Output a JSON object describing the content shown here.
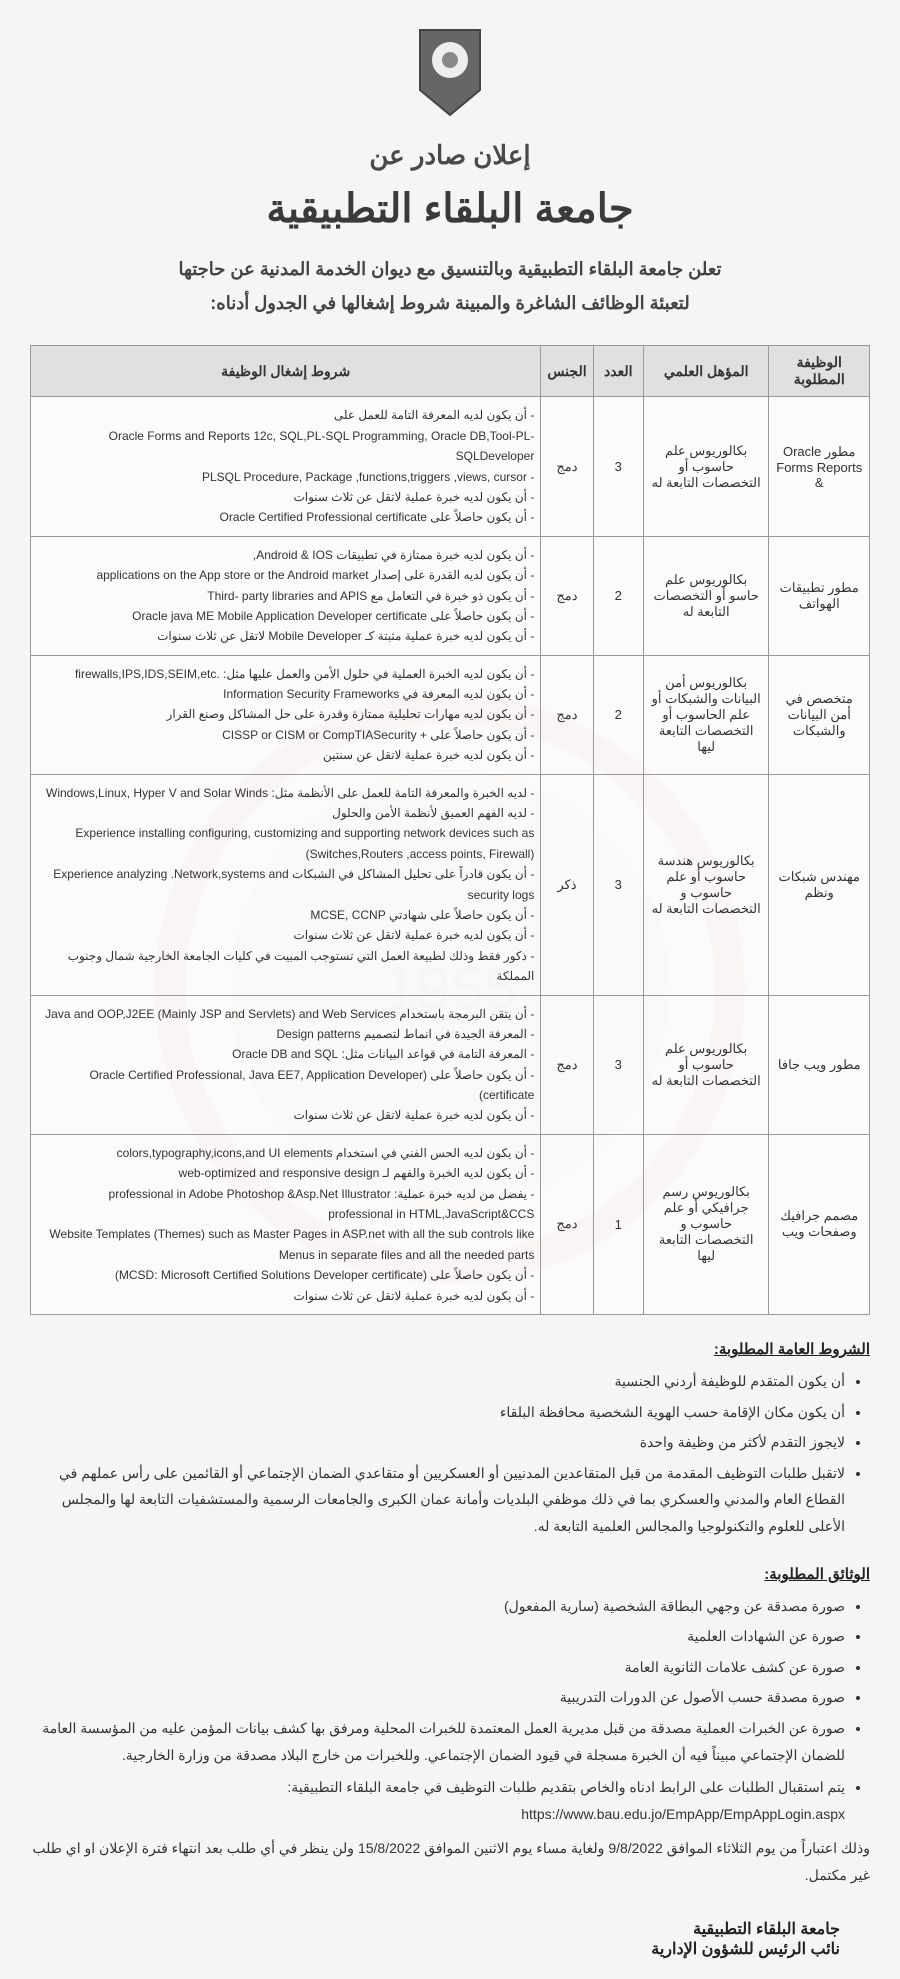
{
  "header": {
    "title1": "إعلان صادر عن",
    "title2": "جامعة البلقاء التطبيقية",
    "intro1": "تعلن جامعة البلقاء التطبيقية وبالتنسيق مع ديوان الخدمة المدنية عن حاجتها",
    "intro2": "لتعبئة الوظائف الشاغرة والمبينة شروط إشغالها في الجدول أدناه:"
  },
  "table": {
    "headers": {
      "job": "الوظيفة المطلوبة",
      "qual": "المؤهل العلمي",
      "count": "العدد",
      "gender": "الجنس",
      "req": "شروط إشغال الوظيفة"
    },
    "rows": [
      {
        "job": "مطور Oracle Forms Reports &",
        "qual": "بكالوريوس علم حاسوب أو التخصصات التابعة له",
        "count": "3",
        "gender": "دمج",
        "req": [
          "- أن يكون لديه المعرفة التامة للعمل على",
          "Oracle Forms and Reports 12c, SQL,PL-SQL Programming, Oracle DB,Tool-PL-SQLDeveloper",
          "- PLSQL Procedure, Package ,functions,triggers ,views, cursor",
          "- أن يكون لديه خبرة عملية لاتقل عن ثلاث سنوات",
          "- أن يكون حاصلاً على Oracle Certified Professional certificate"
        ]
      },
      {
        "job": "مطور تطبيقات الهواتف",
        "qual": "بكالوريوس علم حاسو أو التخصصات التابعة له",
        "count": "2",
        "gender": "دمج",
        "req": [
          "- أن يكون لديه خبرة ممتازة في تطبيقات Android & IOS,",
          "- أن يكون لديه القدرة على إصدار applications on the App store or the Android market",
          "- أن يكون ذو خبرة في التعامل مع Third- party libraries and APIS",
          "- أن يكون حاصلاً على Oracle java ME Mobile Application Developer certificate",
          "- أن يكون لديه خبرة عملية مثبتة كـ Mobile Developer لاتقل عن ثلاث سنوات"
        ]
      },
      {
        "job": "متخصص في أمن البيانات والشبكات",
        "qual": "بكالوريوس أمن البيانات والشبكات أو علم الحاسوب أو التخصصات التابعة ليها",
        "count": "2",
        "gender": "دمج",
        "req": [
          "- أن يكون لديه الخبرة العملية في حلول الأمن والعمل عليها مثل: .firewalls,IPS,IDS,SEIM,etc",
          "- أن يكون لديه المعرفة في Information Security Frameworks",
          "- أن يكون لديه مهارات تحليلية ممتازة وقدرة على حل المشاكل وصنع القرار",
          "- أن يكون حاصلاً على + CISSP or CISM or CompTIASecurity",
          "- أن يكون لديه خبرة عملية لاتقل عن سنتين"
        ]
      },
      {
        "job": "مهندس شبكات ونظم",
        "qual": "بكالوريوس هندسة حاسوب أو علم حاسوب و التخصصات التابعة له",
        "count": "3",
        "gender": "ذكر",
        "req": [
          "- لديه الخبرة والمعرفة التامة للعمل على الأنظمة مثل: Windows,Linux, Hyper V and Solar Winds",
          "- لديه الفهم العميق لأنظمة الأمن والحلول",
          "Experience installing configuring, customizing and supporting network devices such as (Switches,Routers ,access points, Firewall)",
          "- أن يكون قادراً على تحليل المشاكل في الشبكات Experience analyzing .Network,systems and security logs",
          "- أن يكون حاصلاً على شهادتي MCSE, CCNP",
          "- أن يكون لديه خبرة عملية لاتقل عن ثلاث سنوات",
          "- ذكور فقط وذلك لطبيعة العمل التي تستوجب المبيت في كليات الجامعة الخارجية شمال وجنوب المملكة"
        ]
      },
      {
        "job": "مطور ويب جافا",
        "qual": "بكالوريوس علم حاسوب أو التخصصات التابعة له",
        "count": "3",
        "gender": "دمج",
        "req": [
          "- أن يتقن البرمجة باستخدام Java and OOP,J2EE (Mainly JSP and Servlets) and Web Services",
          "- المعرفة الجيدة في انماط لتصميم Design patterns",
          "- المعرفة التامة في قواعد البيانات مثل: Oracle DB and SQL",
          "- أن يكون حاصلاً على (Oracle Certified Professional, Java EE7, Application Developer certificate)",
          "- أن يكون لديه خبرة عملية لاتقل عن ثلاث سنوات"
        ]
      },
      {
        "job": "مصمم جرافيك وصفحات ويب",
        "qual": "بكالوريوس رسم جرافيكي أو علم حاسوب و التخصصات التابعة ليها",
        "count": "1",
        "gender": "دمج",
        "req": [
          "- أن يكون لديه الحس الفني في استخدام colors,typography,icons,and UI elements",
          "- أن يكون لديه الخبرة والفهم لـ web-optimized and responsive design",
          "- يفضل من لديه خبرة عملية: professional in Adobe Photoshop &Asp.Net Illustrator",
          "professional in HTML,JavaScript&CCS",
          "Website Templates (Themes) such as Master Pages in ASP.net with all the sub controls like Menus in separate files and all the needed parts",
          "- أن يكون حاصلاً على (MCSD: Microsoft Certified Solutions Developer certificate)",
          "- أن يكون لديه خبرة عملية لاتقل عن ثلاث سنوات"
        ]
      }
    ]
  },
  "general": {
    "title": "الشروط العامة المطلوبة:",
    "items": [
      "أن يكون المتقدم للوظيفة أردني الجنسية",
      "أن يكون مكان الإقامة حسب الهوية الشخصية محافظة البلقاء",
      "لايجوز التقدم لأكثر من وظيفة واحدة",
      "لاتقبل طلبات التوظيف المقدمة من قبل المتقاعدين المدنيين أو العسكريين أو متقاعدي الضمان الإجتماعي أو القائمين على رأس عملهم في القطاع العام والمدني والعسكري بما في ذلك موظفي البلديات وأمانة عمان الكبرى والجامعات الرسمية والمستشفيات التابعة لها والمجلس الأعلى للعلوم والتكنولوجيا والمجالس العلمية التابعة له."
    ]
  },
  "docs": {
    "title": "الوثائق المطلوبة:",
    "items": [
      "صورة مصدقة عن وجهي البطاقة الشخصية (سارية المفعول)",
      "صورة عن الشهادات العلمية",
      "صورة عن كشف علامات الثانوية العامة",
      "صورة مصدقة حسب الأصول عن الدورات التدريبية",
      "صورة عن الخبرات العملية مصدقة من قبل مديرية العمل المعتمدة للخبرات المحلية ومرفق بها كشف بيانات المؤمن عليه من المؤسسة العامة للضمان الإجتماعي مبيناً فيه أن الخبرة مسجلة في قيود الضمان الإجتماعي. وللخبرات من خارج البلاد مصدقة من وزارة الخارجية."
    ]
  },
  "closing": {
    "line1": "يتم استقبال الطلبات على الرابط ادناه والخاص بتقديم طلبات التوظيف في جامعة البلقاء التطبيقية: https://www.bau.edu.jo/EmpApp/EmpAppLogin.aspx",
    "line2": "وذلك اعتباراً من يوم الثلاثاء الموافق 9/8/2022 ولغاية مساء يوم الاثنين الموافق 15/8/2022 ولن ينظر في أي طلب بعد انتهاء فترة الإعلان او اي طلب غير مكتمل."
  },
  "signature": {
    "line1": "جامعة البلقاء التطبيقية",
    "line2": "نائب الرئيس للشؤون الإدارية"
  }
}
